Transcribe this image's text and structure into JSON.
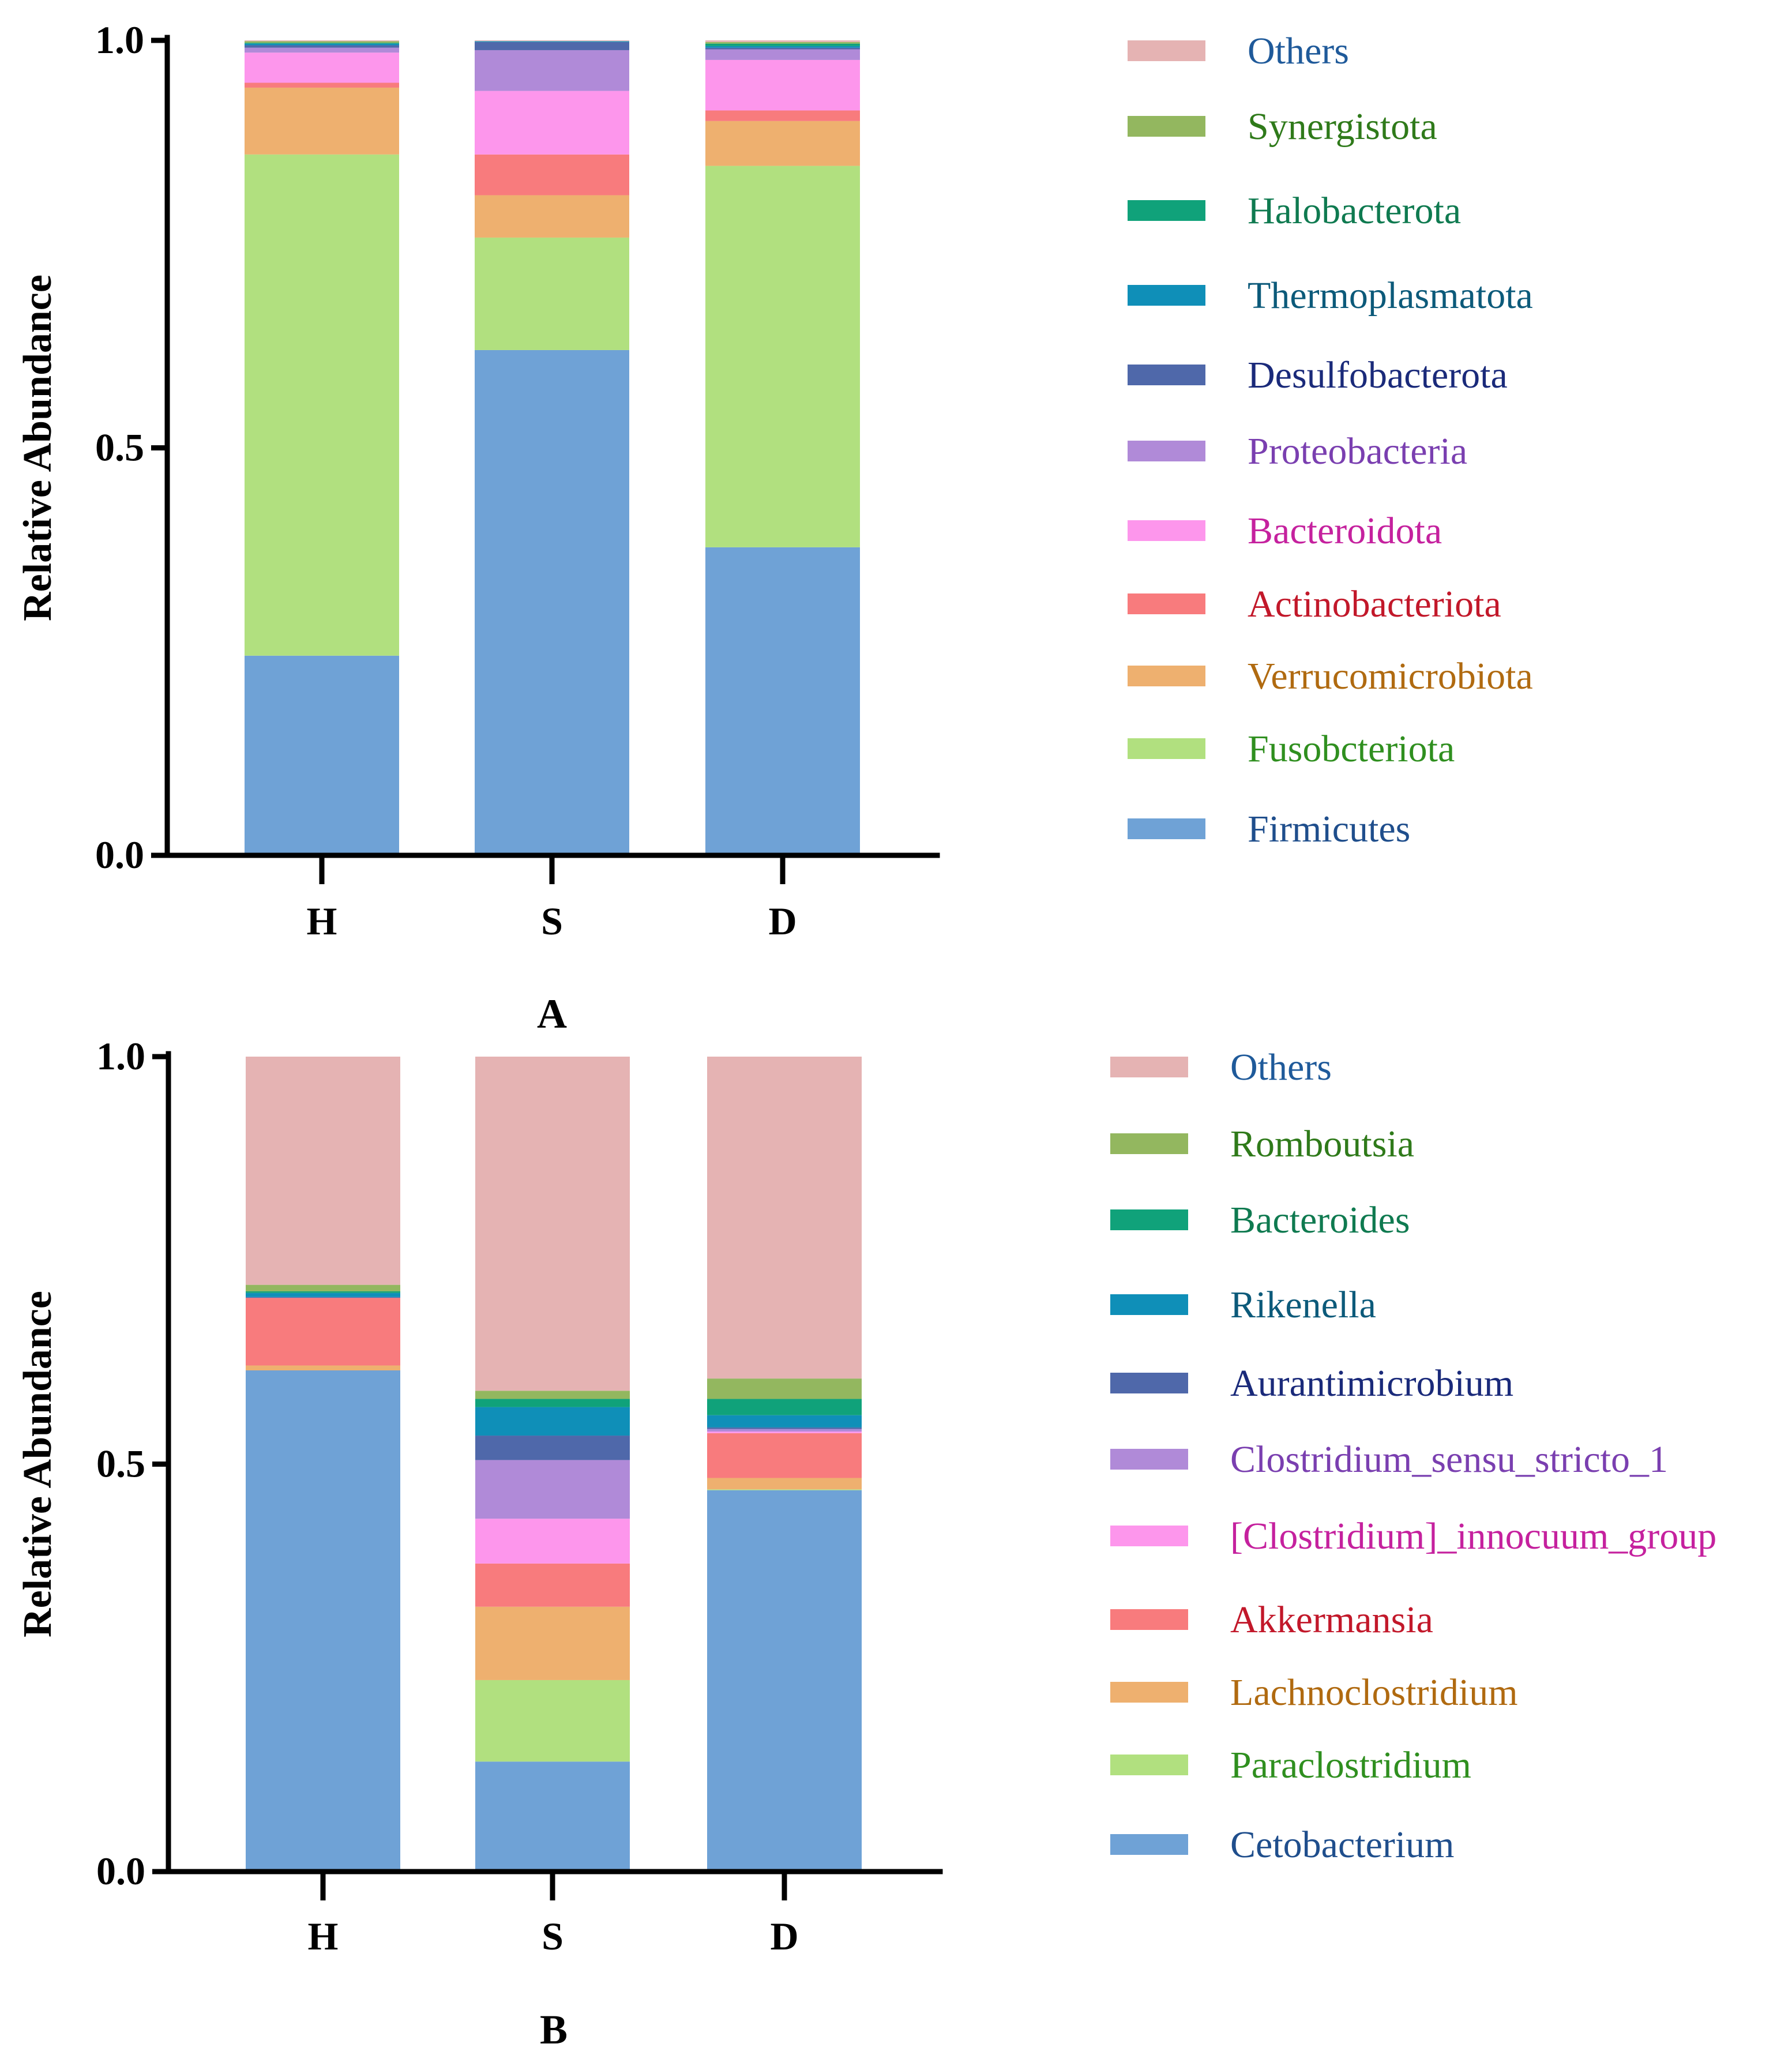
{
  "chart_data": [
    {
      "type": "bar",
      "stacked": true,
      "panel_label": "A",
      "title": "",
      "xlabel": "",
      "ylabel": "Relative Abundance",
      "ylim": [
        0,
        1
      ],
      "yticks": [
        0.0,
        0.5,
        1.0
      ],
      "ytick_labels": [
        "0.0",
        "0.5",
        "1.0"
      ],
      "categories": [
        "H",
        "S",
        "D"
      ],
      "legend_position": "right",
      "series": [
        {
          "name": "Firmicutes",
          "color": "#6fa2d6",
          "text_color": "#1f4e8c",
          "values": [
            0.245,
            0.62,
            0.378
          ]
        },
        {
          "name": "Fusobcteriota",
          "color": "#b1e07f",
          "text_color": "#2f8f1f",
          "values": [
            0.615,
            0.138,
            0.468
          ]
        },
        {
          "name": "Verrucomicrobiota",
          "color": "#eeb06f",
          "text_color": "#b06a10",
          "values": [
            0.082,
            0.052,
            0.055
          ]
        },
        {
          "name": "Actinobacteriota",
          "color": "#f87b7d",
          "text_color": "#c2182a",
          "values": [
            0.006,
            0.05,
            0.013
          ]
        },
        {
          "name": "Bacteroidota",
          "color": "#fd96ec",
          "text_color": "#c5219e",
          "values": [
            0.037,
            0.078,
            0.062
          ]
        },
        {
          "name": "Proteobacteria",
          "color": "#b08ad8",
          "text_color": "#7a3fb0",
          "values": [
            0.006,
            0.05,
            0.013
          ]
        },
        {
          "name": "Desulfobacterota",
          "color": "#4f68aa",
          "text_color": "#1a2a7a",
          "values": [
            0.003,
            0.01,
            0.002
          ]
        },
        {
          "name": "Thermoplasmatota",
          "color": "#0f8fb8",
          "text_color": "#0c5a7a",
          "values": [
            0.002,
            0.001,
            0.002
          ]
        },
        {
          "name": "Halobacterota",
          "color": "#10a27a",
          "text_color": "#0f7a50",
          "values": [
            0.001,
            0.0,
            0.003
          ]
        },
        {
          "name": "Synergistota",
          "color": "#93b75f",
          "text_color": "#2f7a1a",
          "values": [
            0.002,
            0.0,
            0.002
          ]
        },
        {
          "name": "Others",
          "color": "#e5b3b3",
          "text_color": "#1f5a9a",
          "values": [
            0.001,
            0.001,
            0.002
          ]
        }
      ]
    },
    {
      "type": "bar",
      "stacked": true,
      "panel_label": "B",
      "title": "",
      "xlabel": "",
      "ylabel": "Relative Abundance",
      "ylim": [
        0,
        1
      ],
      "yticks": [
        0.0,
        0.5,
        1.0
      ],
      "ytick_labels": [
        "0.0",
        "0.5",
        "1.0"
      ],
      "categories": [
        "H",
        "S",
        "D"
      ],
      "legend_position": "right",
      "series": [
        {
          "name": "Cetobacterium",
          "color": "#6fa2d6",
          "text_color": "#1f4e8c",
          "values": [
            0.615,
            0.135,
            0.468
          ]
        },
        {
          "name": "Paraclostridium",
          "color": "#b1e07f",
          "text_color": "#2f8f1f",
          "values": [
            0.0,
            0.1,
            0.001
          ]
        },
        {
          "name": "Lachnoclostridium",
          "color": "#eeb06f",
          "text_color": "#b06a10",
          "values": [
            0.006,
            0.09,
            0.014
          ]
        },
        {
          "name": "Akkermansia",
          "color": "#f87b7d",
          "text_color": "#c2182a",
          "values": [
            0.083,
            0.053,
            0.055
          ]
        },
        {
          "name": "[Clostridium]_innocuum_group",
          "color": "#fd96ec",
          "text_color": "#c5219e",
          "values": [
            0.0,
            0.055,
            0.002
          ]
        },
        {
          "name": "Clostridium_sensu_stricto_1",
          "color": "#b08ad8",
          "text_color": "#7a3fb0",
          "values": [
            0.0,
            0.072,
            0.003
          ]
        },
        {
          "name": "Aurantimicrobium",
          "color": "#4f68aa",
          "text_color": "#1a2a7a",
          "values": [
            0.001,
            0.03,
            0.002
          ]
        },
        {
          "name": "Rikenella",
          "color": "#0f8fb8",
          "text_color": "#0c5a7a",
          "values": [
            0.005,
            0.035,
            0.015
          ]
        },
        {
          "name": "Bacteroides",
          "color": "#10a27a",
          "text_color": "#0f7a50",
          "values": [
            0.002,
            0.01,
            0.02
          ]
        },
        {
          "name": "Romboutsia",
          "color": "#93b75f",
          "text_color": "#2f7a1a",
          "values": [
            0.008,
            0.01,
            0.025
          ]
        },
        {
          "name": "Others",
          "color": "#e5b3b3",
          "text_color": "#1f5a9a",
          "values": [
            0.28,
            0.41,
            0.395
          ]
        }
      ]
    }
  ]
}
